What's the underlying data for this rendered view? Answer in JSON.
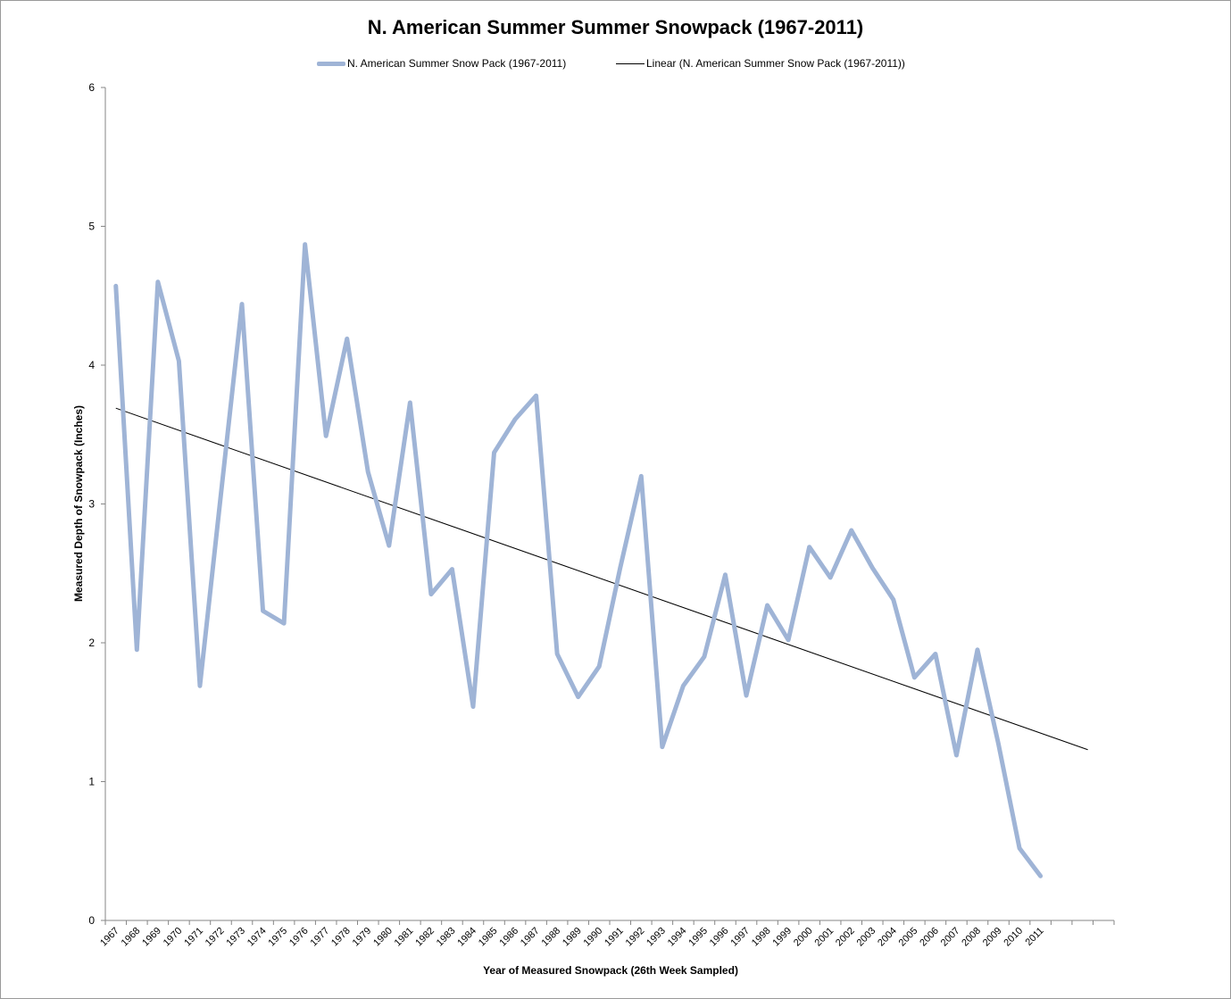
{
  "chart_data": {
    "type": "line",
    "title": "N. American Summer Summer Snowpack (1967-2011)",
    "xlabel": "Year of Measured Snowpack (26th Week Sampled)",
    "ylabel": "Measured Depth of Snowpack (Inches)",
    "ylim": [
      0,
      6
    ],
    "yticks": [
      "0",
      "1",
      "2",
      "3",
      "4",
      "5",
      "6"
    ],
    "grid": false,
    "legend_position": "top",
    "categories": [
      "1967",
      "1968",
      "1969",
      "1970",
      "1971",
      "1972",
      "1973",
      "1974",
      "1975",
      "1976",
      "1977",
      "1978",
      "1979",
      "1980",
      "1981",
      "1982",
      "1983",
      "1984",
      "1985",
      "1986",
      "1987",
      "1988",
      "1989",
      "1990",
      "1991",
      "1992",
      "1993",
      "1994",
      "1995",
      "1996",
      "1997",
      "1998",
      "1999",
      "2000",
      "2001",
      "2002",
      "2003",
      "2004",
      "2005",
      "2006",
      "2007",
      "2008",
      "2009",
      "2010",
      "2011"
    ],
    "series": [
      {
        "name": "N. American Summer Snow Pack (1967-2011)",
        "color": "#9fb4d6",
        "values": [
          4.57,
          1.95,
          4.6,
          4.03,
          1.69,
          3.07,
          4.44,
          2.23,
          2.14,
          4.87,
          3.49,
          4.19,
          3.23,
          2.7,
          3.73,
          2.35,
          2.53,
          1.54,
          3.37,
          3.61,
          3.78,
          1.92,
          1.61,
          1.83,
          2.54,
          3.2,
          1.25,
          1.69,
          1.9,
          2.49,
          1.62,
          2.27,
          2.02,
          2.69,
          2.47,
          2.81,
          2.54,
          2.31,
          1.75,
          1.92,
          1.19,
          1.95,
          1.27,
          0.52,
          0.32
        ]
      },
      {
        "name": "Linear (N. American Summer Snow Pack (1967-2011))",
        "color": "#000000",
        "trendline": true,
        "start": 3.69,
        "end": 1.23,
        "end_category_index": 47
      }
    ]
  }
}
